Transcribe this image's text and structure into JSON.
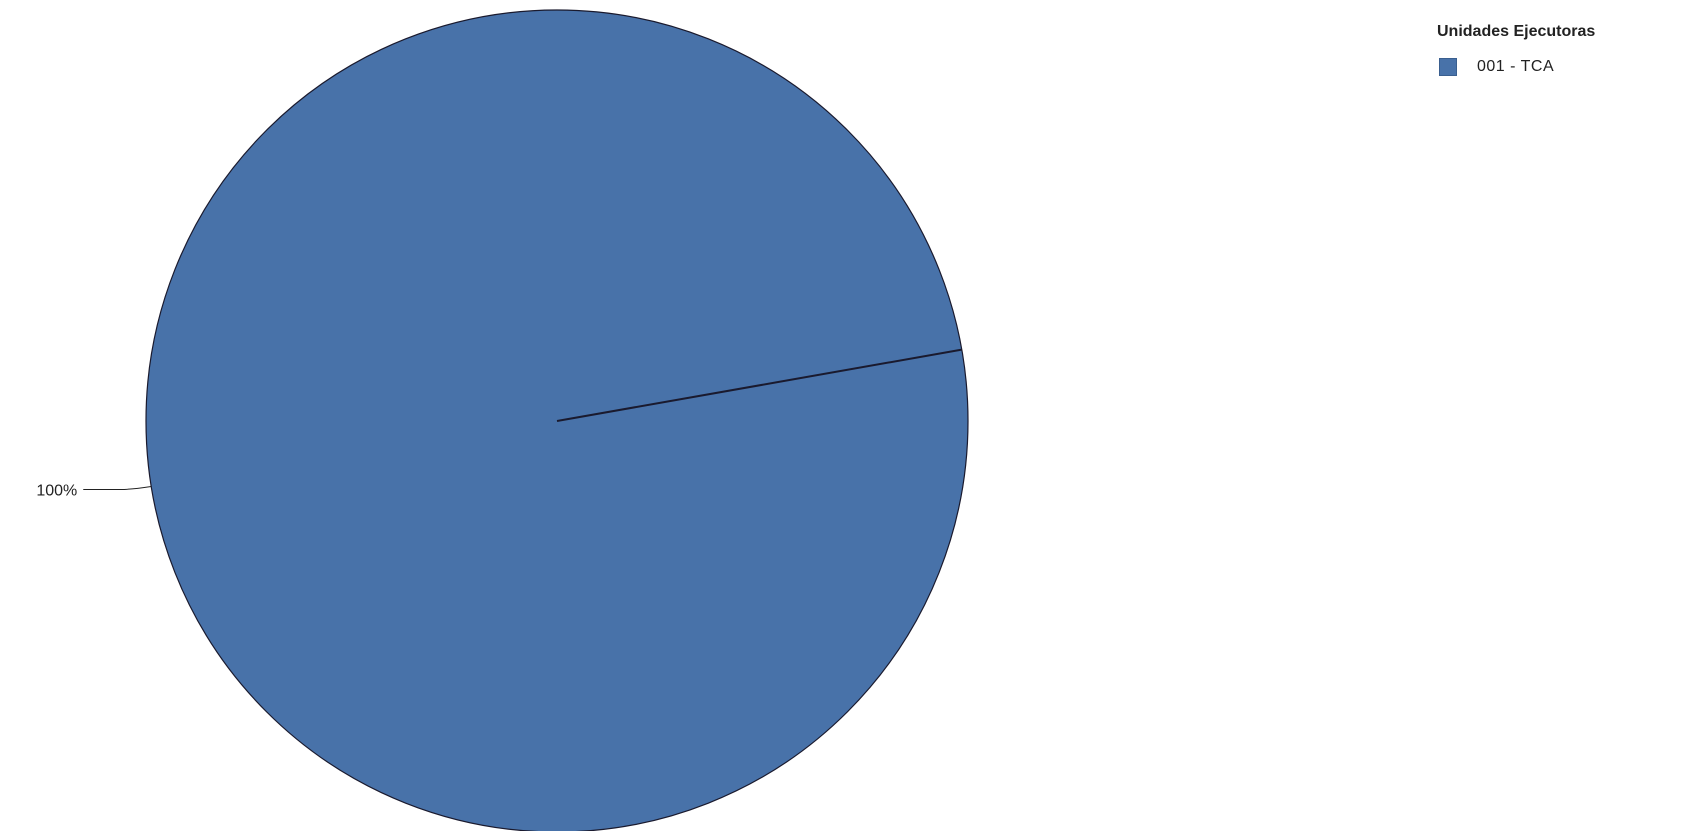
{
  "chart_data": {
    "type": "pie",
    "title": "",
    "legend_title": "Unidades Ejecutoras",
    "legend_position": "top-right",
    "slices": [
      {
        "name": "001 - TCA",
        "value": 100,
        "label": "100%",
        "color": "#4872a9"
      }
    ],
    "colors": {
      "slice_fill": "#4872a9",
      "slice_stroke": "#1a1a2e",
      "label_text": "#222222"
    }
  }
}
